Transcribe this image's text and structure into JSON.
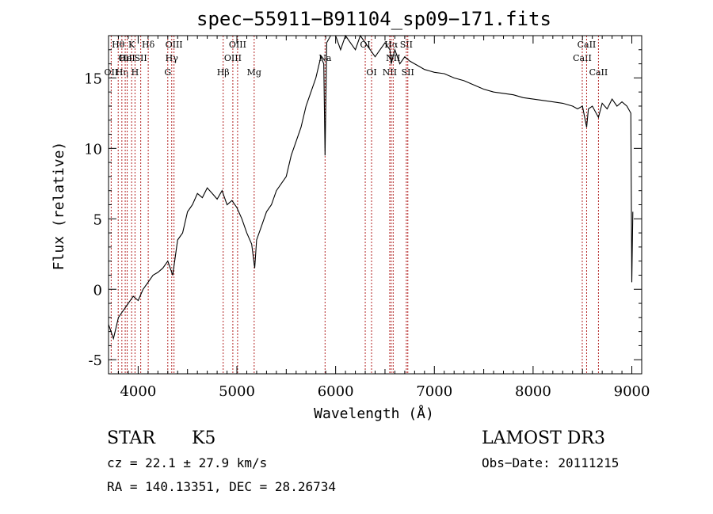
{
  "chart_data": {
    "type": "line",
    "title": "spec−55911−B91104_sp09−171.fits",
    "xlabel": "Wavelength (Å)",
    "ylabel": "Flux (relative)",
    "xlim": [
      3700,
      9100
    ],
    "ylim": [
      -6,
      18
    ],
    "x_ticks": [
      4000,
      5000,
      6000,
      7000,
      8000,
      9000
    ],
    "y_ticks": [
      -5,
      0,
      5,
      10,
      15
    ],
    "grid": false,
    "line_color": "#000000",
    "marker_color": "#b22222",
    "series": [
      {
        "x": [
          3700,
          3750,
          3800,
          3850,
          3900,
          3950,
          4000,
          4050,
          4100,
          4150,
          4200,
          4250,
          4300,
          4350,
          4400,
          4450,
          4500,
          4550,
          4600,
          4650,
          4700,
          4750,
          4800,
          4850,
          4900,
          4950,
          5000,
          5050,
          5100,
          5150,
          5180,
          5200,
          5250,
          5300,
          5350,
          5400,
          5450,
          5500,
          5550,
          5600,
          5650,
          5700,
          5750,
          5800,
          5850,
          5880,
          5893,
          5910,
          5950,
          6000,
          6050,
          6100,
          6150,
          6200,
          6250,
          6300,
          6350,
          6400,
          6450,
          6500,
          6550,
          6563,
          6600,
          6650,
          6700,
          6750,
          6800,
          6850,
          6900,
          6950,
          7000,
          7100,
          7200,
          7300,
          7400,
          7500,
          7600,
          7700,
          7800,
          7900,
          8000,
          8100,
          8200,
          8300,
          8400,
          8450,
          8500,
          8542,
          8560,
          8600,
          8662,
          8700,
          8750,
          8800,
          8850,
          8900,
          8950,
          8990,
          9000,
          9010
        ],
        "y": [
          -2.5,
          -3.5,
          -2.0,
          -1.5,
          -1.0,
          -0.5,
          -0.8,
          0.0,
          0.5,
          1.0,
          1.2,
          1.5,
          2.0,
          1.0,
          3.5,
          4.0,
          5.5,
          6.0,
          6.8,
          6.5,
          7.2,
          6.8,
          6.4,
          7.0,
          6.0,
          6.3,
          5.8,
          5.0,
          4.0,
          3.2,
          1.5,
          3.5,
          4.5,
          5.5,
          6.0,
          7.0,
          7.5,
          8.0,
          9.5,
          10.5,
          11.5,
          13.0,
          14.0,
          15.0,
          16.5,
          16.0,
          9.5,
          17.5,
          18.0,
          18.5,
          17.0,
          18.0,
          17.5,
          17.0,
          18.0,
          17.5,
          17.0,
          16.5,
          17.0,
          17.5,
          17.0,
          16.0,
          17.0,
          16.0,
          16.5,
          16.2,
          16.0,
          15.8,
          15.6,
          15.5,
          15.4,
          15.3,
          15.0,
          14.8,
          14.5,
          14.2,
          14.0,
          13.9,
          13.8,
          13.6,
          13.5,
          13.4,
          13.3,
          13.2,
          13.0,
          12.8,
          13.0,
          11.5,
          12.8,
          13.0,
          12.2,
          13.2,
          12.8,
          13.5,
          13.0,
          13.3,
          13.0,
          12.5,
          0.5,
          5.5
        ]
      }
    ],
    "line_markers": [
      {
        "wavelength": 3727,
        "label": "OII",
        "row": 3
      },
      {
        "wavelength": 3798,
        "label": "Hθ",
        "row": 1
      },
      {
        "wavelength": 3835,
        "label": "Hη",
        "row": 3
      },
      {
        "wavelength": 3869,
        "label": "OII",
        "row": 2
      },
      {
        "wavelength": 3889,
        "label": "HeI",
        "row": 2
      },
      {
        "wavelength": 3934,
        "label": "K",
        "row": 1
      },
      {
        "wavelength": 3968,
        "label": "H",
        "row": 3
      },
      {
        "wavelength": 4026,
        "label": "SII",
        "row": 2
      },
      {
        "wavelength": 4102,
        "label": "Hδ",
        "row": 1
      },
      {
        "wavelength": 4300,
        "label": "G",
        "row": 3
      },
      {
        "wavelength": 4340,
        "label": "Hγ",
        "row": 2
      },
      {
        "wavelength": 4363,
        "label": "OIII",
        "row": 1
      },
      {
        "wavelength": 4861,
        "label": "Hβ",
        "row": 3
      },
      {
        "wavelength": 4959,
        "label": "OIII",
        "row": 2
      },
      {
        "wavelength": 5007,
        "label": "OIII",
        "row": 1
      },
      {
        "wavelength": 5175,
        "label": "Mg",
        "row": 3
      },
      {
        "wavelength": 5893,
        "label": "Na",
        "row": 2
      },
      {
        "wavelength": 6300,
        "label": "OI",
        "row": 1
      },
      {
        "wavelength": 6364,
        "label": "OI",
        "row": 3
      },
      {
        "wavelength": 6548,
        "label": "NII",
        "row": 3
      },
      {
        "wavelength": 6563,
        "label": "Hα",
        "row": 1
      },
      {
        "wavelength": 6583,
        "label": "NII",
        "row": 2
      },
      {
        "wavelength": 6716,
        "label": "SII",
        "row": 1
      },
      {
        "wavelength": 6731,
        "label": "SII",
        "row": 3
      },
      {
        "wavelength": 8498,
        "label": "CaII",
        "row": 2
      },
      {
        "wavelength": 8542,
        "label": "CaII",
        "row": 1
      },
      {
        "wavelength": 8662,
        "label": "CaII",
        "row": 3
      }
    ]
  },
  "info": {
    "object_class": "STAR",
    "subclass": "K5",
    "survey": "LAMOST DR3",
    "cz": "cz = 22.1 ± 27.9 km/s",
    "obs_date": "Obs−Date: 20111215",
    "coords": "RA = 140.13351, DEC =  28.26734"
  }
}
